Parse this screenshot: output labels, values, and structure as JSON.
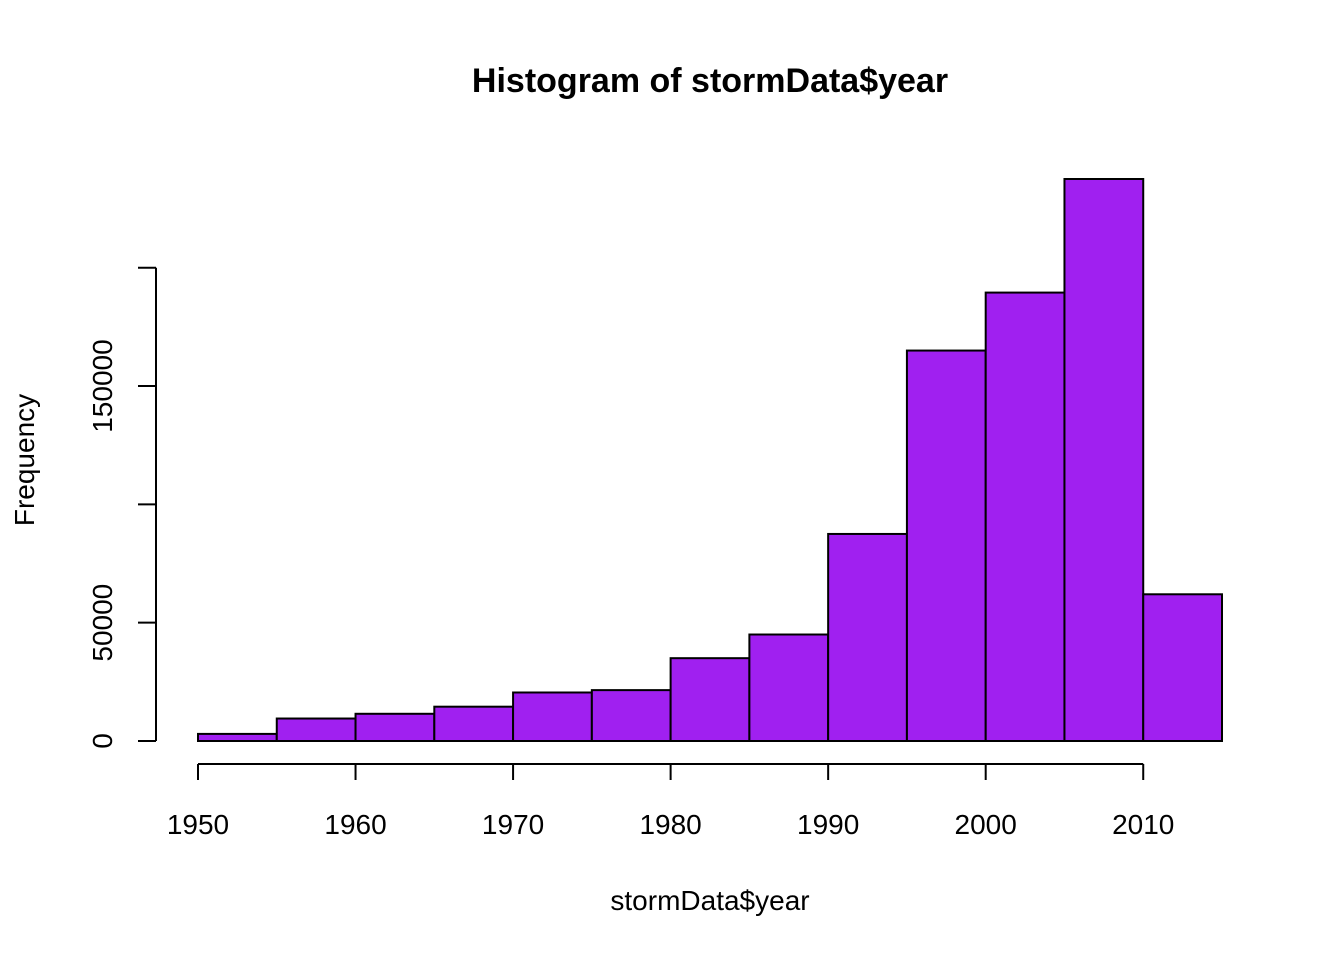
{
  "chart_data": {
    "type": "bar",
    "title": "Histogram of stormData$year",
    "xlabel": "stormData$year",
    "ylabel": "Frequency",
    "bin_edges": [
      1950,
      1955,
      1960,
      1965,
      1970,
      1975,
      1980,
      1985,
      1990,
      1995,
      2000,
      2005,
      2010,
      2015
    ],
    "values": [
      3000,
      9500,
      11500,
      14500,
      20500,
      21500,
      35000,
      45000,
      87500,
      165000,
      189500,
      237500,
      62000
    ],
    "xlim": [
      1950,
      2015
    ],
    "ylim": [
      0,
      237500
    ],
    "x_ticks": [
      1950,
      1960,
      1970,
      1980,
      1990,
      2000,
      2010
    ],
    "x_tick_labels": [
      "1950",
      "1960",
      "1970",
      "1980",
      "1990",
      "2000",
      "2010"
    ],
    "y_ticks": [
      0,
      50000,
      100000,
      150000,
      200000
    ],
    "y_tick_labels": [
      "0",
      "50000",
      "",
      "150000",
      ""
    ],
    "bar_color": "#A020F0",
    "grid": false
  }
}
